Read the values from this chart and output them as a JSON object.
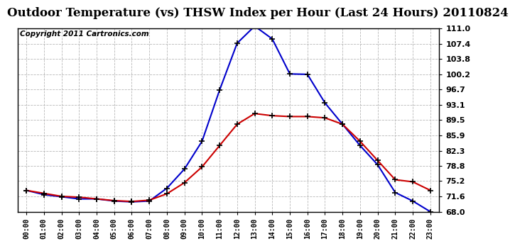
{
  "title": "Outdoor Temperature (vs) THSW Index per Hour (Last 24 Hours) 20110824",
  "copyright": "Copyright 2011 Cartronics.com",
  "hours": [
    "00:00",
    "01:00",
    "02:00",
    "03:00",
    "04:00",
    "05:00",
    "06:00",
    "07:00",
    "08:00",
    "09:00",
    "10:00",
    "11:00",
    "12:00",
    "13:00",
    "14:00",
    "15:00",
    "16:00",
    "17:00",
    "18:00",
    "19:00",
    "20:00",
    "21:00",
    "22:00",
    "23:00"
  ],
  "temp": [
    73.0,
    72.3,
    71.6,
    71.4,
    71.0,
    70.6,
    70.4,
    70.7,
    72.2,
    74.8,
    78.5,
    83.5,
    88.5,
    91.0,
    90.5,
    90.3,
    90.3,
    90.0,
    88.5,
    84.5,
    80.0,
    75.5,
    75.0,
    73.0
  ],
  "thsw": [
    73.0,
    72.0,
    71.5,
    71.0,
    71.0,
    70.5,
    70.3,
    70.5,
    73.5,
    78.0,
    84.5,
    96.5,
    107.5,
    111.5,
    108.5,
    100.3,
    100.2,
    93.5,
    88.5,
    83.5,
    79.0,
    72.5,
    70.5,
    68.0
  ],
  "ylim": [
    68.0,
    111.0
  ],
  "yticks": [
    68.0,
    71.6,
    75.2,
    78.8,
    82.3,
    85.9,
    89.5,
    93.1,
    96.7,
    100.2,
    103.8,
    107.4,
    111.0
  ],
  "temp_color": "#cc0000",
  "thsw_color": "#0000cc",
  "marker_color": "#000000",
  "bg_color": "#ffffff",
  "grid_color": "#b0b0b0",
  "title_fontsize": 12,
  "copyright_fontsize": 7.5
}
